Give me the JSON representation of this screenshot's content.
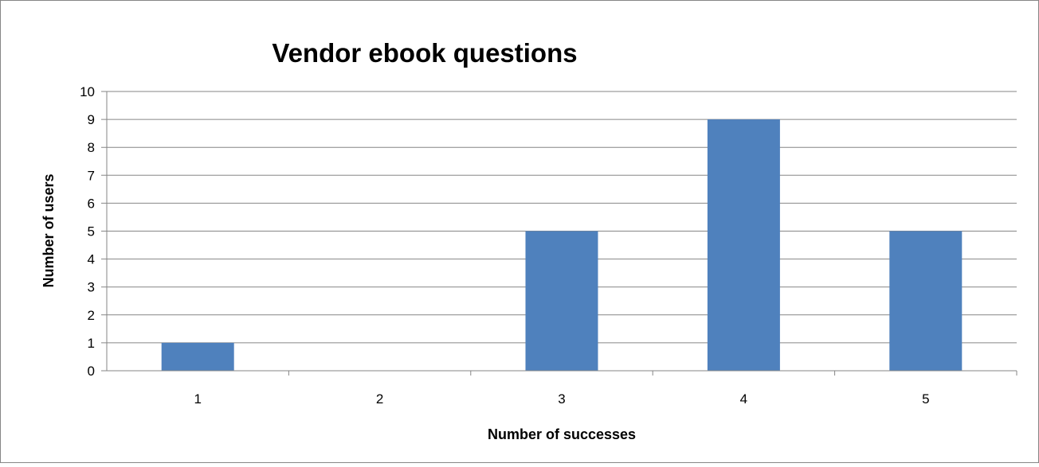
{
  "chart_data": {
    "type": "bar",
    "title": "Vendor ebook questions",
    "xlabel": "Number of successes",
    "ylabel": "Number of users",
    "categories": [
      "1",
      "2",
      "3",
      "4",
      "5"
    ],
    "values": [
      1,
      0,
      5,
      9,
      5
    ],
    "ylim": [
      0,
      10
    ],
    "yticks": [
      "0",
      "1",
      "2",
      "3",
      "4",
      "5",
      "6",
      "7",
      "8",
      "9",
      "10"
    ],
    "grid": true,
    "legend": "none",
    "bar_color": "#4F81BD",
    "grid_color": "#868686"
  }
}
